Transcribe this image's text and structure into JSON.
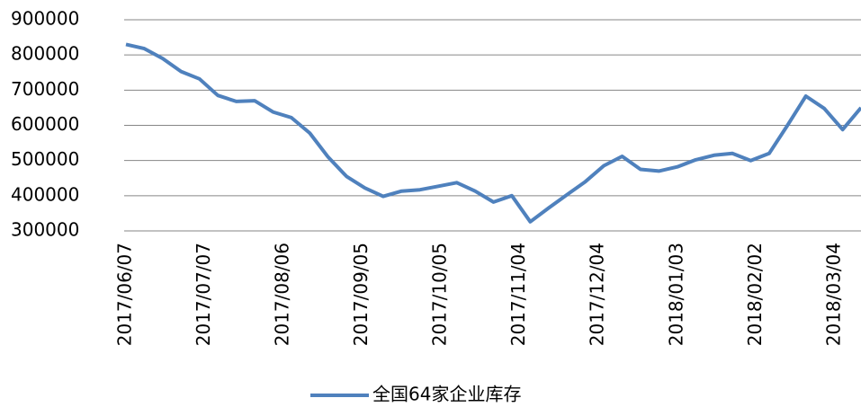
{
  "chart_data": {
    "type": "line",
    "x": [
      "2017/06/07",
      "2017/06/14",
      "2017/06/21",
      "2017/06/28",
      "2017/07/05",
      "2017/07/12",
      "2017/07/19",
      "2017/07/26",
      "2017/08/02",
      "2017/08/09",
      "2017/08/16",
      "2017/08/23",
      "2017/08/30",
      "2017/09/06",
      "2017/09/13",
      "2017/09/20",
      "2017/09/27",
      "2017/10/04",
      "2017/10/11",
      "2017/10/18",
      "2017/10/25",
      "2017/11/01",
      "2017/11/08",
      "2017/11/15",
      "2017/11/22",
      "2017/11/29",
      "2017/12/06",
      "2017/12/13",
      "2017/12/20",
      "2017/12/27",
      "2018/01/03",
      "2018/01/10",
      "2018/01/17",
      "2018/01/24",
      "2018/01/31",
      "2018/02/07",
      "2018/02/14",
      "2018/02/21",
      "2018/02/28",
      "2018/03/07",
      "2018/03/14"
    ],
    "series": [
      {
        "name": "全国64家企业库存",
        "color": "#4f81bd",
        "values": [
          830000,
          818000,
          790000,
          753000,
          732000,
          685000,
          668000,
          670000,
          638000,
          622000,
          578000,
          510000,
          455000,
          422000,
          398000,
          413000,
          417000,
          427000,
          437000,
          413000,
          382000,
          400000,
          326000,
          365000,
          403000,
          440000,
          485000,
          512000,
          475000,
          470000,
          482000,
          502000,
          515000,
          520000,
          500000,
          520000,
          600000,
          683000,
          648000,
          588000,
          650000
        ]
      }
    ],
    "xlim": [
      "2017/06/07",
      "2018/03/14"
    ],
    "xticks": [
      "2017/06/07",
      "2017/07/07",
      "2017/08/06",
      "2017/09/05",
      "2017/10/05",
      "2017/11/04",
      "2017/12/04",
      "2018/01/03",
      "2018/02/02",
      "2018/03/04"
    ],
    "ylim": [
      300000,
      900000
    ],
    "yticks": [
      300000,
      400000,
      500000,
      600000,
      700000,
      800000,
      900000
    ],
    "grid": true,
    "legend": "bottom"
  }
}
